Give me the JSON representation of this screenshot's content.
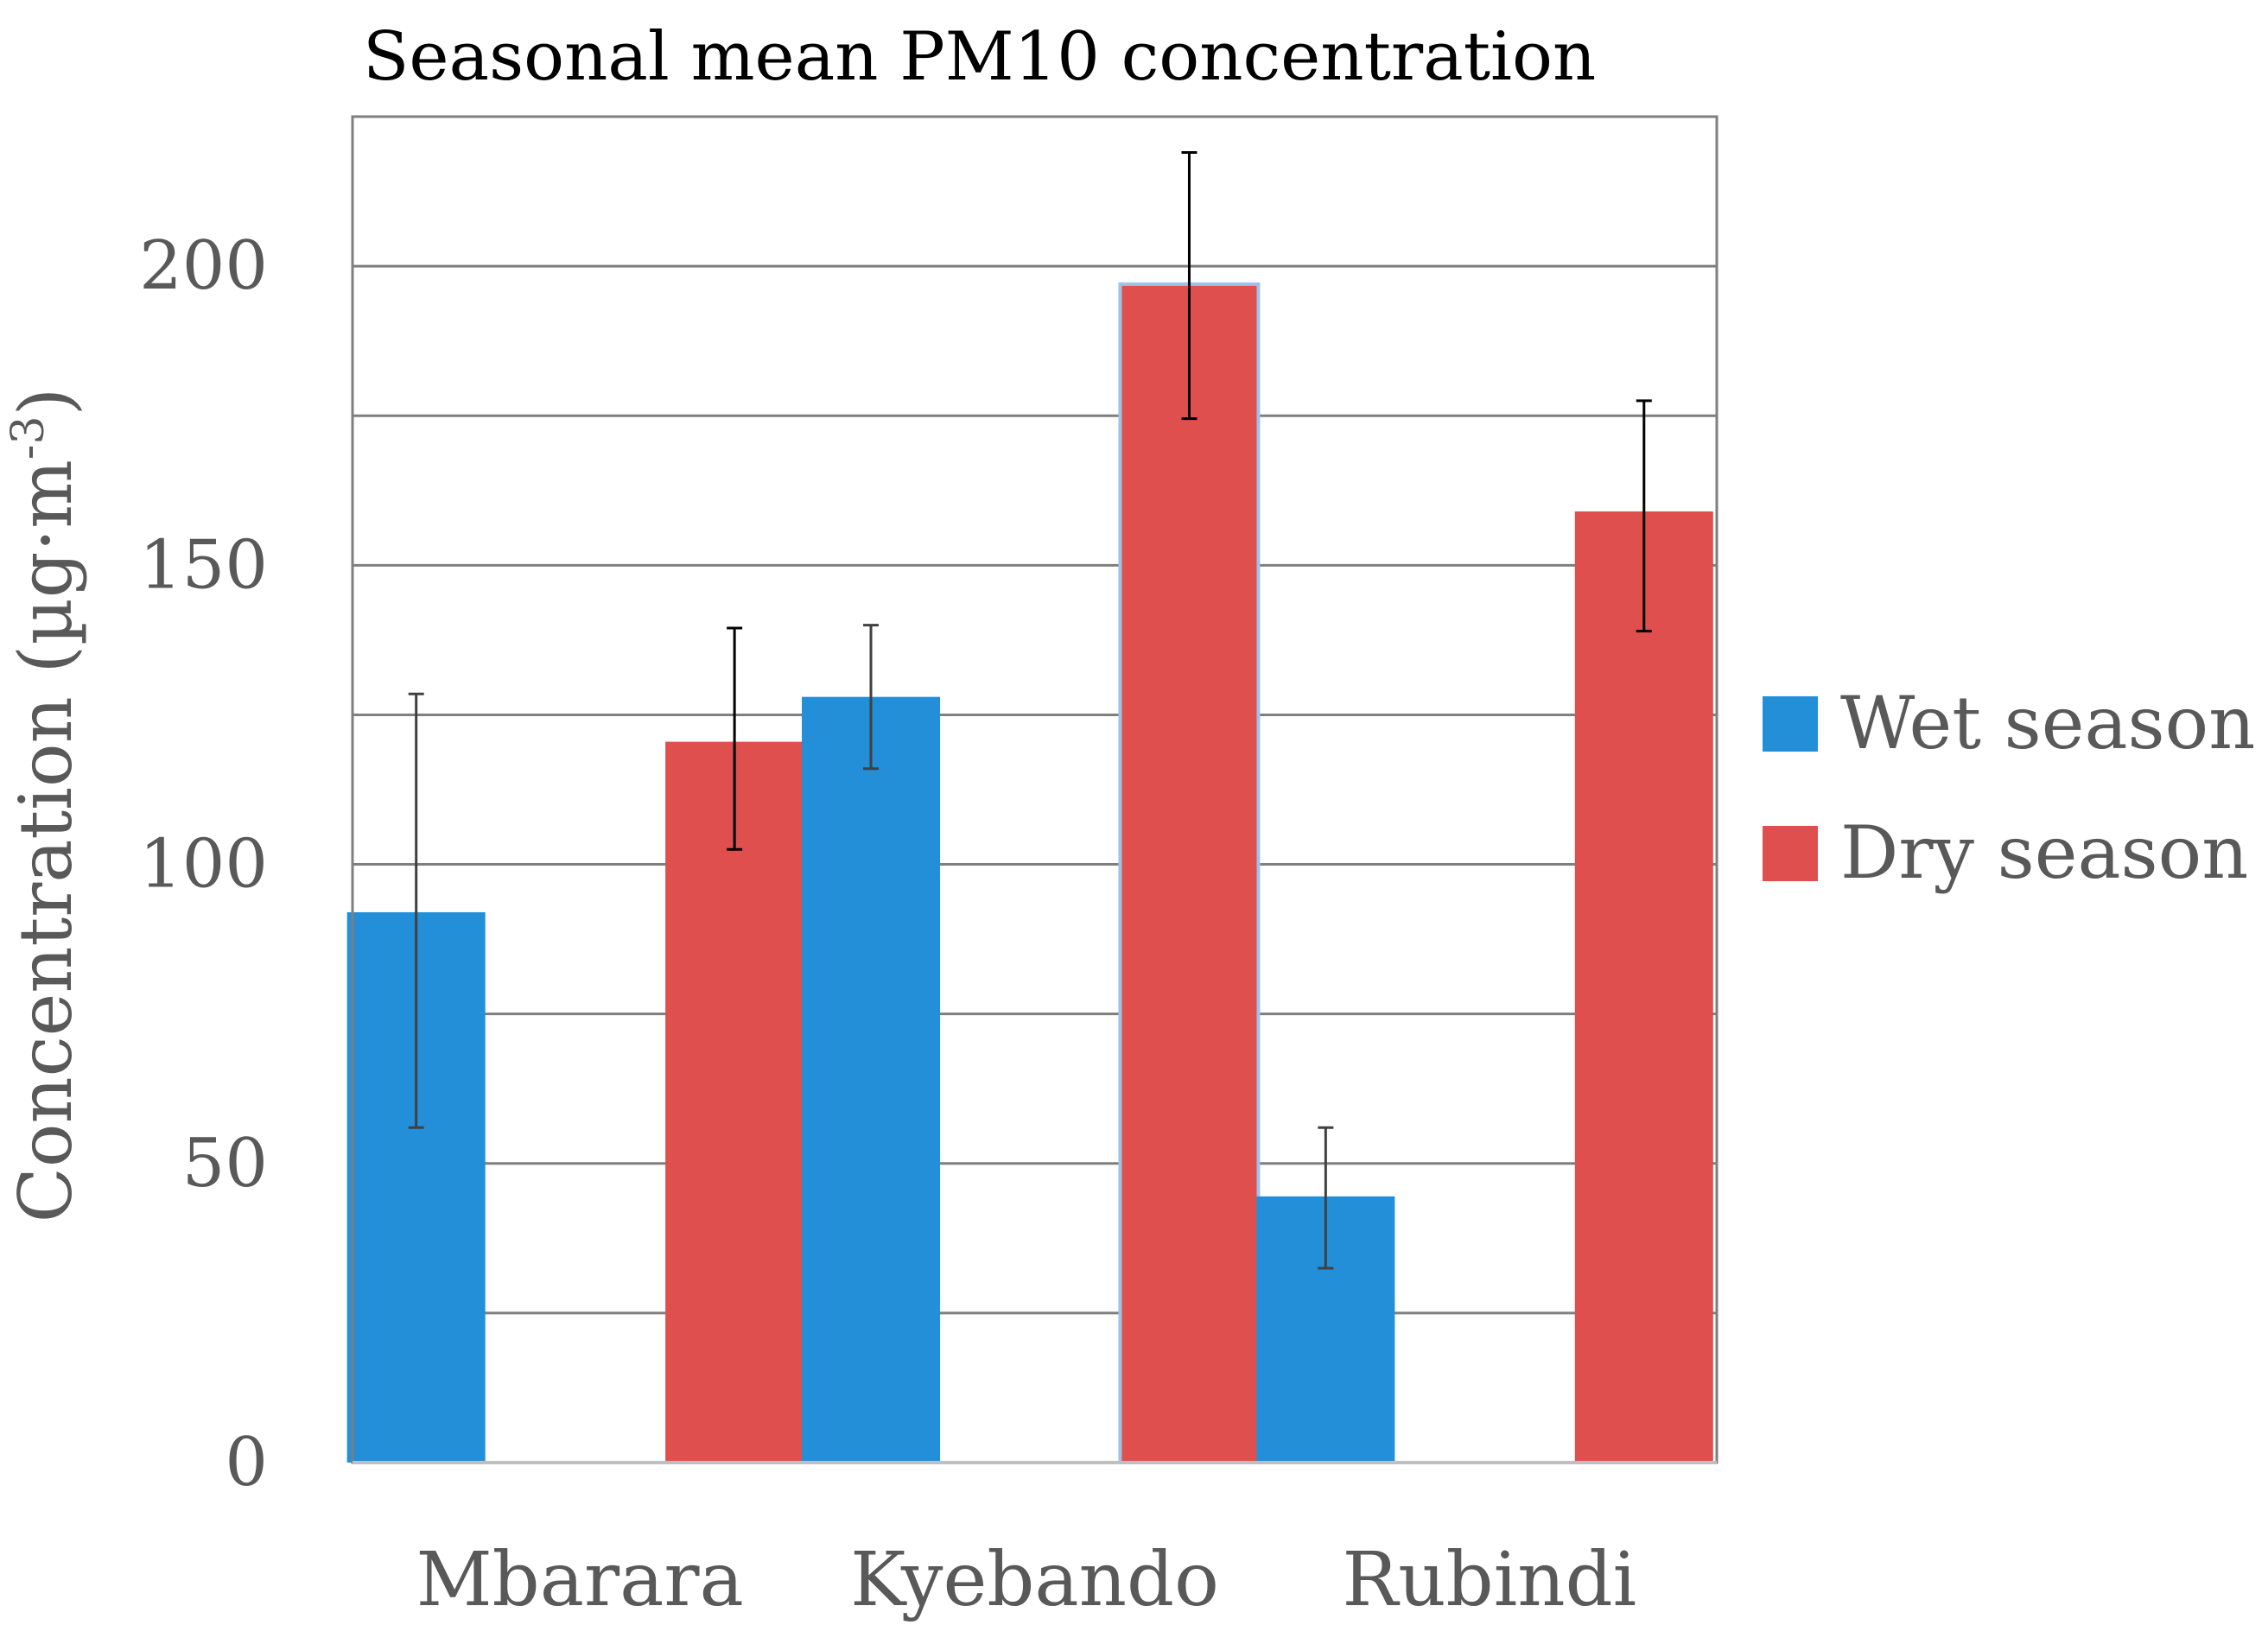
{
  "chart_data": {
    "type": "bar",
    "title": "Seasonal mean PM10 concentration",
    "xlabel": "",
    "ylabel": "Concentration (µg·m",
    "ylabel_superscript": "-3",
    "ylabel_close": ")",
    "categories": [
      "Mbarara",
      "Kyebando",
      "Rubindi"
    ],
    "ylim": [
      0,
      225
    ],
    "yticks": [
      0,
      50,
      100,
      150,
      200
    ],
    "yticks_labeled": [
      "0",
      "50",
      "100",
      "150",
      "200"
    ],
    "gridlines": [
      25,
      50,
      75,
      100,
      125,
      150,
      175,
      200
    ],
    "grid": true,
    "legend_position": "right",
    "series": [
      {
        "name": "Wet season",
        "color": "#228FD8",
        "values": [
          92,
          128,
          44.5
        ],
        "error_low": [
          56,
          116,
          32.5
        ],
        "error_high": [
          128.5,
          140,
          56
        ]
      },
      {
        "name": "Dry season",
        "color": "#DE4F4D",
        "values": [
          120.5,
          197,
          159
        ],
        "error_low": [
          102.5,
          174.5,
          139
        ],
        "error_high": [
          139.5,
          219,
          177.5
        ]
      }
    ]
  }
}
